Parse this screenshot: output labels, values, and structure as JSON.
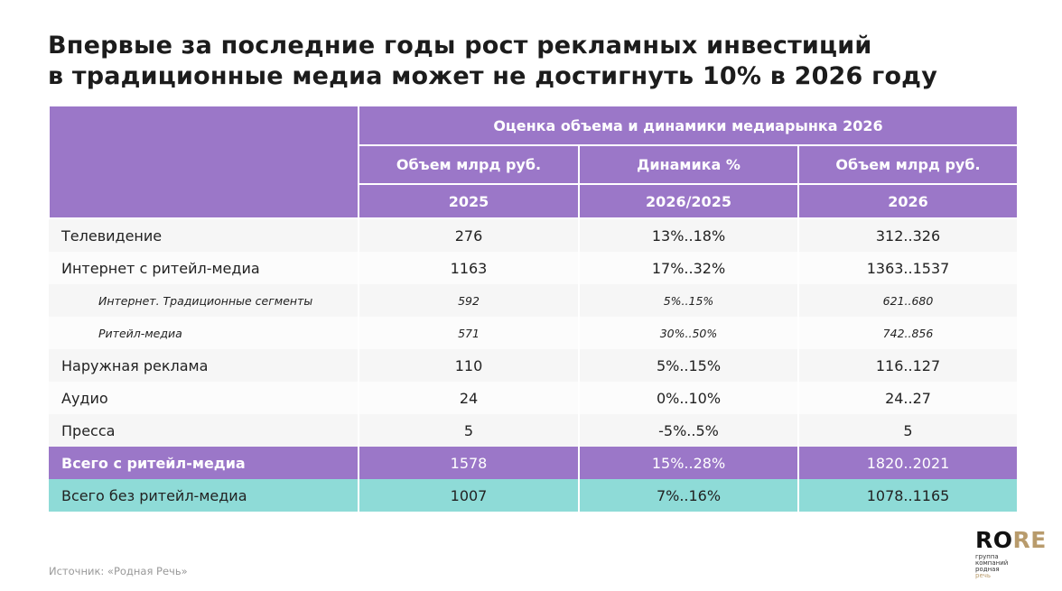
{
  "title": [
    "Впервые за последние годы рост рекламных инвестиций",
    "в традиционные медиа может не достигнуть 10% в 2026 году"
  ],
  "table": {
    "group_header": "Оценка объема и динамики медиарынка 2026",
    "col_headers": [
      "Объем млрд руб.",
      "Динамика %",
      "Объем млрд руб."
    ],
    "col_subheaders": [
      "2025",
      "2026/2025",
      "2026"
    ],
    "rows": [
      {
        "label": "Телевидение",
        "v2025": "276",
        "dyn": "13%..18%",
        "v2026": "312..326"
      },
      {
        "label": "Интернет с ритейл-медиа",
        "v2025": "1163",
        "dyn": "17%..32%",
        "v2026": "1363..1537"
      },
      {
        "label": "Интернет. Традиционные сегменты",
        "v2025": "592",
        "dyn": "5%..15%",
        "v2026": "621..680"
      },
      {
        "label": "Ритейл-медиа",
        "v2025": "571",
        "dyn": "30%..50%",
        "v2026": "742..856"
      },
      {
        "label": "Наружная реклама",
        "v2025": "110",
        "dyn": "5%..15%",
        "v2026": "116..127"
      },
      {
        "label": "Аудио",
        "v2025": "24",
        "dyn": "0%..10%",
        "v2026": "24..27"
      },
      {
        "label": "Пресса",
        "v2025": "5",
        "dyn": "-5%..5%",
        "v2026": "5"
      },
      {
        "label": "Всего с ритейл-медиа",
        "v2025": "1578",
        "dyn": "15%..28%",
        "v2026": "1820..2021"
      },
      {
        "label": "Всего без ритейл-медиа",
        "v2025": "1007",
        "dyn": "7%..16%",
        "v2026": "1078..1165"
      }
    ]
  },
  "source": "Источник: «Родная Речь»",
  "logo": {
    "ro": "RO",
    "re": "RE",
    "lines": [
      "группа",
      "компаний",
      "родная",
      "речь"
    ]
  },
  "colors": {
    "purple": "#9b77c8",
    "teal": "#8edbd7",
    "gold": "#b89b6c"
  }
}
